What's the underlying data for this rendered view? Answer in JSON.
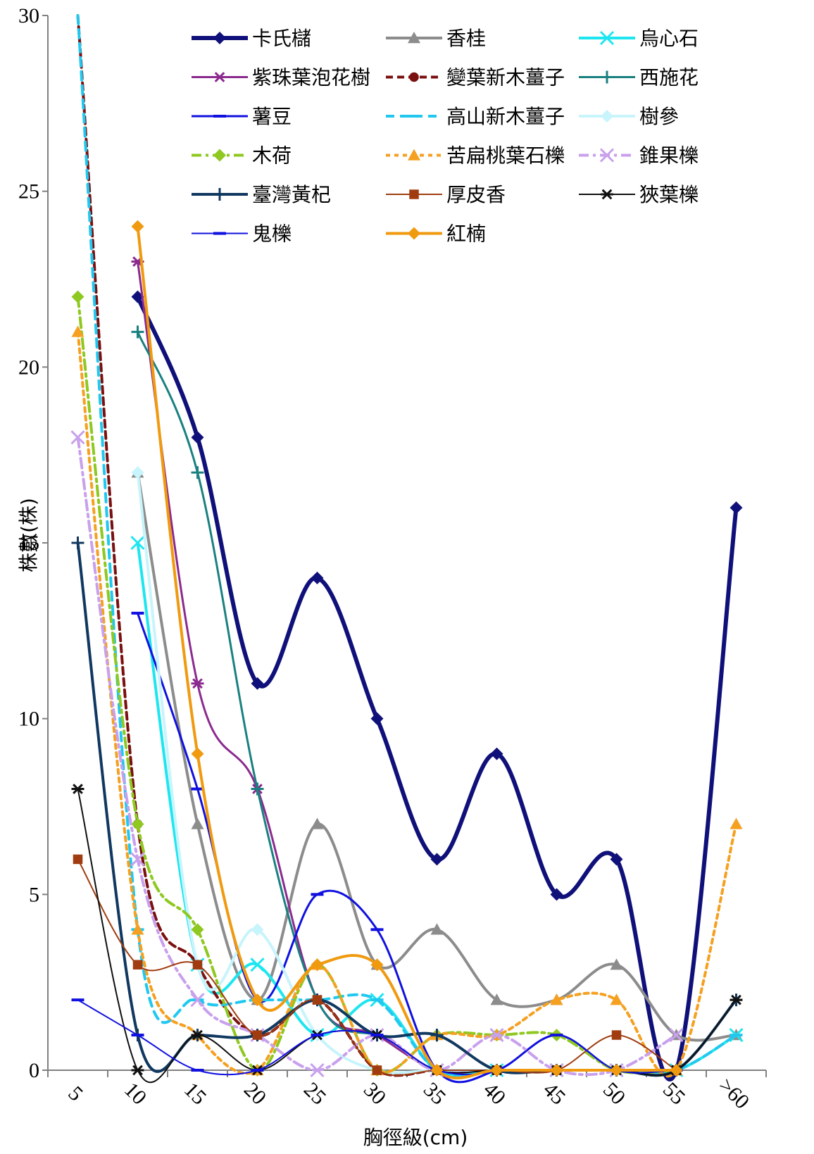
{
  "chart_data": {
    "type": "line",
    "xlabel": "胸徑級(cm)",
    "ylabel": "株數(株)",
    "categories": [
      "5",
      "10",
      "15",
      "20",
      "25",
      "30",
      "35",
      "40",
      "45",
      "50",
      "55",
      ">60"
    ],
    "ylim": [
      0,
      30
    ],
    "yticks": [
      0,
      5,
      10,
      15,
      20,
      25,
      30
    ],
    "legend_position": "top-right",
    "series": [
      {
        "name": "卡氏櫧",
        "color": "#10107a",
        "dash": "",
        "marker": "diamond",
        "width": 6,
        "values": [
          null,
          22,
          18,
          11,
          14,
          10,
          6,
          9,
          5,
          6,
          0,
          16
        ]
      },
      {
        "name": "香桂",
        "color": "#8c8c8c",
        "dash": "",
        "marker": "triangle",
        "width": 4,
        "values": [
          null,
          17,
          7,
          2,
          7,
          3,
          4,
          2,
          2,
          3,
          1,
          1
        ]
      },
      {
        "name": "烏心石",
        "color": "#1ee6f0",
        "dash": "",
        "marker": "x",
        "width": 4,
        "values": [
          null,
          15,
          3,
          3,
          1,
          2,
          0,
          0,
          0,
          0,
          0,
          1
        ]
      },
      {
        "name": "紫珠葉泡花樹",
        "color": "#8b2a8f",
        "dash": "",
        "marker": "asterisk",
        "width": 3,
        "values": [
          null,
          23,
          11,
          8,
          2,
          1,
          0,
          0,
          0,
          0,
          0,
          null
        ]
      },
      {
        "name": "變葉新木薑子",
        "color": "#7a1010",
        "dash": "10,6",
        "marker": "circle",
        "width": 4,
        "values": [
          30,
          7,
          3,
          1,
          2,
          0,
          0,
          0,
          0,
          0,
          0,
          null
        ]
      },
      {
        "name": "西施花",
        "color": "#1a8080",
        "dash": "",
        "marker": "plus",
        "width": 3,
        "values": [
          null,
          21,
          17,
          8,
          2,
          1,
          1,
          0,
          0,
          0,
          0,
          null
        ]
      },
      {
        "name": "薯豆",
        "color": "#1010e0",
        "dash": "",
        "marker": "dash",
        "width": 3,
        "values": [
          null,
          13,
          8,
          2,
          5,
          4,
          0,
          0,
          1,
          0,
          0,
          null
        ]
      },
      {
        "name": "高山新木薑子",
        "color": "#20c8f0",
        "dash": "12,8",
        "marker": "dash",
        "width": 4,
        "values": [
          30,
          4,
          2,
          2,
          2,
          2,
          0,
          0,
          0,
          0,
          0,
          1
        ]
      },
      {
        "name": "樹參",
        "color": "#c8f4fc",
        "dash": "",
        "marker": "diamond",
        "width": 4,
        "values": [
          null,
          17,
          3,
          4,
          1,
          0,
          0,
          0,
          0,
          0,
          0,
          null
        ]
      },
      {
        "name": "木荷",
        "color": "#8ec820",
        "dash": "14,6,4,6",
        "marker": "diamond",
        "width": 4,
        "values": [
          22,
          7,
          4,
          0,
          3,
          0,
          1,
          1,
          1,
          0,
          0,
          null
        ]
      },
      {
        "name": "苦扁桃葉石櫟",
        "color": "#f5a020",
        "dash": "6,6",
        "marker": "triangle",
        "width": 4,
        "values": [
          21,
          4,
          1,
          0,
          3,
          0,
          1,
          1,
          2,
          2,
          0,
          7
        ]
      },
      {
        "name": "錐果櫟",
        "color": "#c8a0ec",
        "dash": "14,6,4,6",
        "marker": "x",
        "width": 4,
        "values": [
          18,
          6,
          2,
          1,
          0,
          1,
          0,
          1,
          0,
          0,
          1,
          null
        ]
      },
      {
        "name": "臺灣黃杞",
        "color": "#103860",
        "dash": "",
        "marker": "plus",
        "width": 4,
        "values": [
          15,
          1,
          1,
          1,
          2,
          1,
          1,
          0,
          0,
          0,
          0,
          2
        ]
      },
      {
        "name": "厚皮香",
        "color": "#a03c10",
        "dash": "",
        "marker": "square",
        "width": 2,
        "values": [
          6,
          3,
          3,
          1,
          2,
          0,
          0,
          0,
          0,
          1,
          0,
          null
        ]
      },
      {
        "name": "狹葉櫟",
        "color": "#101010",
        "dash": "",
        "marker": "asterisk",
        "width": 2,
        "values": [
          8,
          0,
          1,
          0,
          1,
          1,
          0,
          0,
          0,
          0,
          0,
          2
        ]
      },
      {
        "name": "鬼櫟",
        "color": "#1010e0",
        "dash": "",
        "marker": "dash",
        "width": 2,
        "values": [
          2,
          1,
          0,
          0,
          1,
          1,
          0,
          0,
          1,
          0,
          0,
          null
        ]
      },
      {
        "name": "紅楠",
        "color": "#f09a10",
        "dash": "",
        "marker": "diamond",
        "width": 4,
        "values": [
          null,
          24,
          9,
          2,
          3,
          3,
          0,
          0,
          0,
          0,
          0,
          null
        ]
      }
    ]
  }
}
